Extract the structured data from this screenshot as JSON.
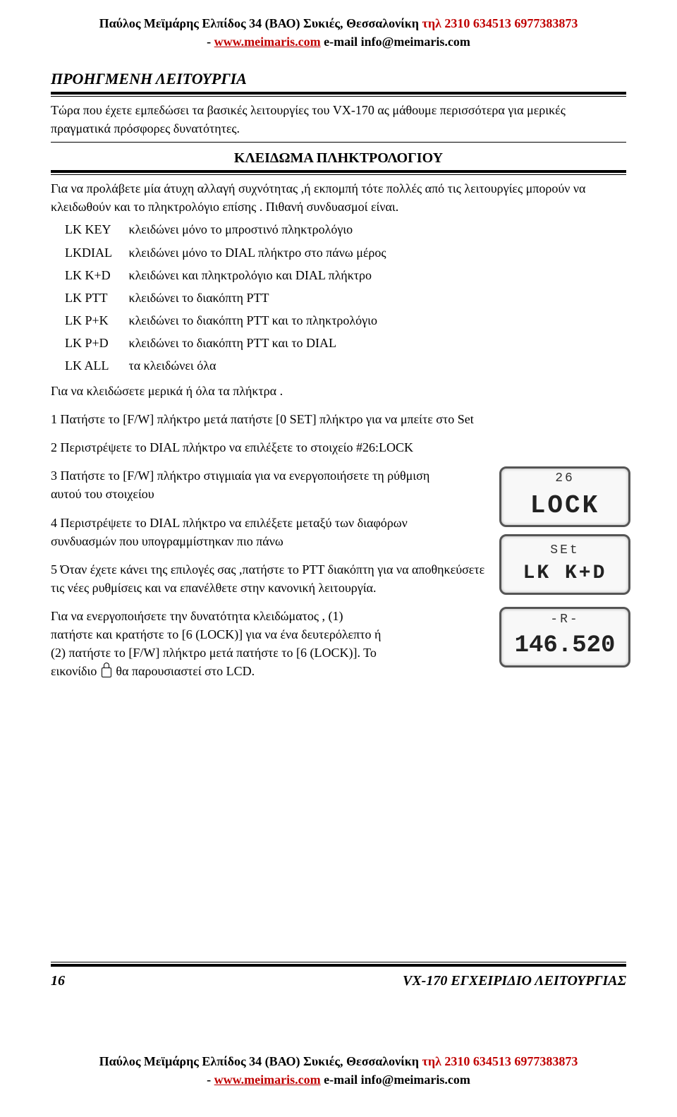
{
  "header": {
    "name": "Παύλος Μεϊμάρης Ελπίδος 34 (ΒΑΟ) Συκιές, Θεσσαλονίκη ",
    "phone": "τηλ 2310 634513 6977383873",
    "dash": "- ",
    "url": "www.meimaris.com",
    "email_label": " e-mail info@meimaris.com"
  },
  "section_title": "ΠΡΟΗΓΜΕΝΗ  ΛΕΙΤΟΥΡΓΙΑ",
  "intro_para": "Τώρα που έχετε εμπεδώσει τα βασικές λειτουργίες του VX-170 ας μάθουμε περισσότερα για μερικές πραγματικά  πρόσφορες δυνατότητες.",
  "sub_title": "ΚΛΕΙΔΩΜΑ  ΠΛΗΚΤΡΟΛΟΓΙΟΥ",
  "para2": "Για να προλάβετε μία άτυχη αλλαγή συχνότητας ,ή εκπομπή τότε πολλές από τις λειτουργίες μπορούν να κλειδωθούν  και το πληκτρολόγιο επίσης . Πιθανή συνδυασμοί είναι.",
  "defs": [
    {
      "k": "LK KEY",
      "v": "κλειδώνει μόνο το μπροστινό πληκτρολόγιο"
    },
    {
      "k": "LKDIAL",
      "v": "κλειδώνει μόνο το DIAL πλήκτρο στο πάνω μέρος"
    },
    {
      "k": "LK K+D",
      "v": " κλειδώνει και πληκτρολόγιο και DIAL πλήκτρο"
    },
    {
      "k": "LK PTT",
      "v": "κλειδώνει το διακόπτη PTT"
    },
    {
      "k": "LK P+K",
      "v": "κλειδώνει το διακόπτη PTT και το πληκτρολόγιο"
    },
    {
      "k": "LK P+D",
      "v": "κλειδώνει το διακόπτη PTT και το DIAL"
    },
    {
      "k": "LK ALL",
      "v": "τα κλειδώνει όλα"
    }
  ],
  "para3": "Για να κλειδώσετε μερικά ή όλα τα πλήκτρα .",
  "steps": [
    "1 Πατήστε το [F/W] πλήκτρο μετά πατήστε [0 SET] πλήκτρο  για να μπείτε στο Set",
    "2 Περιστρέψετε  το DIAL πλήκτρο να επιλέξετε το στοιχείο #26:LOCK",
    "3 Πατήστε το [F/W] πλήκτρο  στιγμιαία για να ενεργοποιήσετε τη ρύθμιση   αυτού του στοιχείου",
    "4 Περιστρέψετε  το DIAL πλήκτρο να επιλέξετε μεταξύ των διαφόρων  συνδυασμών που  υπογραμμίστηκαν πιο πάνω",
    "5 Όταν έχετε κάνει της επιλογές σας ,πατήστε το PTT διακόπτη για να αποθηκεύσετε τις νέες ρυθμίσεις  και να επανέλθετε στην κανονική λειτουργία."
  ],
  "last_para_a": "Για να ενεργοποιήσετε  την δυνατότητα κλειδώματος , (1) πατήστε και κρατήστε το [6  (LOCK)] για να ένα δευτερόλεπτο ή (2) πατήστε το [F/W] πλήκτρο μετά πατήστε το  [6 (LOCK)]. Το εικονίδιο ",
  "last_para_b": " θα παρουσιαστεί  στο LCD.",
  "lcd": {
    "box1_small": "26",
    "box1_large": "LOCK",
    "box2_small": "SEt",
    "box2_large": "LK  K+D",
    "box3_small": "-R-",
    "box3_large": "146.520"
  },
  "footer": {
    "page_num": "16",
    "title": "VX-170 ΕΓΧΕΙΡΙΔΙΟ ΛΕΙΤΟΥΡΓΙΑΣ"
  },
  "colors": {
    "red": "#c00000",
    "black": "#000000"
  }
}
